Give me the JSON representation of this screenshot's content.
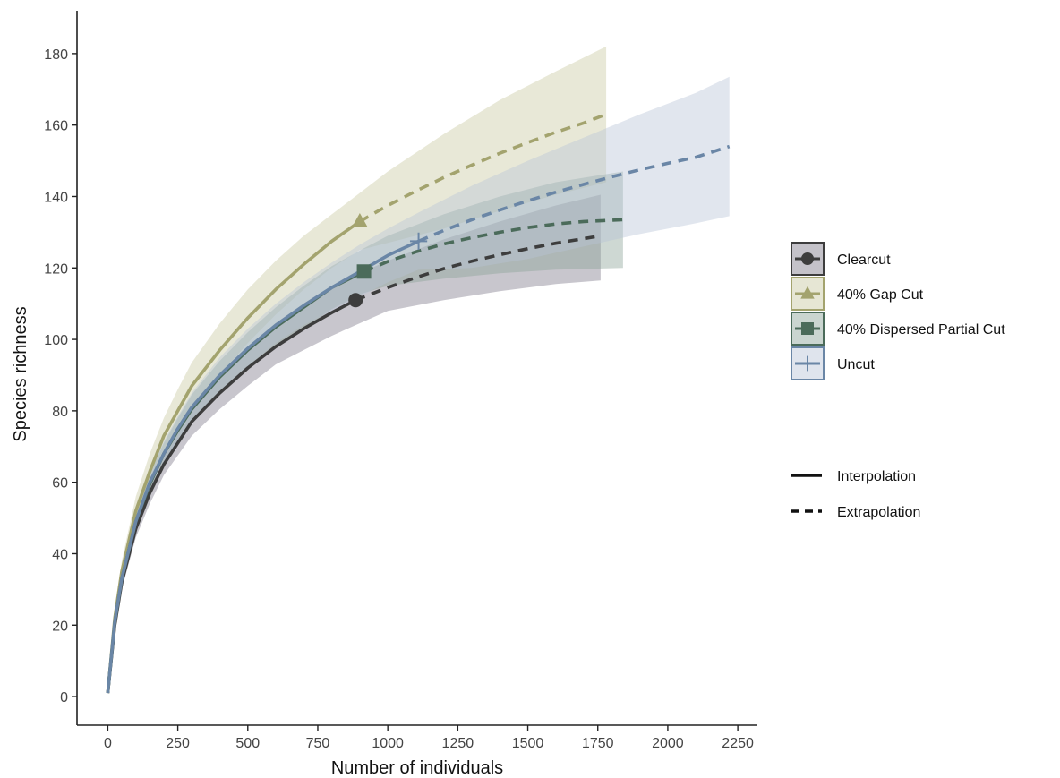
{
  "chart_data": {
    "type": "line",
    "title": "",
    "xlabel": "Number of individuals",
    "ylabel": "Species richness",
    "xlim": [
      -110,
      2320
    ],
    "ylim": [
      -8,
      192
    ],
    "x_ticks": [
      0,
      250,
      500,
      750,
      1000,
      1250,
      1500,
      1750,
      2000,
      2250
    ],
    "x_tick_labels": [
      "0",
      "250",
      "500",
      "750",
      "1000",
      "1250",
      "1500",
      "1750",
      "2000",
      "2250"
    ],
    "y_ticks": [
      0,
      20,
      40,
      60,
      80,
      100,
      120,
      140,
      160,
      180
    ],
    "y_tick_labels": [
      "0",
      "20",
      "40",
      "60",
      "80",
      "100",
      "120",
      "140",
      "160",
      "180"
    ],
    "grid": false,
    "legend_placement": "right",
    "series": [
      {
        "name": "Clearcut",
        "color": "#3d3d3d",
        "fill_color": "#7d7888",
        "marker": "circle",
        "observed": [
          885,
          111
        ],
        "interpolation": [
          [
            0,
            1
          ],
          [
            25,
            20
          ],
          [
            50,
            32
          ],
          [
            100,
            47
          ],
          [
            150,
            57
          ],
          [
            200,
            65
          ],
          [
            250,
            71
          ],
          [
            300,
            77
          ],
          [
            400,
            85
          ],
          [
            500,
            92
          ],
          [
            600,
            98
          ],
          [
            700,
            103
          ],
          [
            800,
            107.5
          ],
          [
            885,
            111
          ]
        ],
        "extrapolation": [
          [
            885,
            111
          ],
          [
            1000,
            114.5
          ],
          [
            1100,
            117.3
          ],
          [
            1200,
            119.8
          ],
          [
            1300,
            121.9
          ],
          [
            1400,
            123.7
          ],
          [
            1500,
            125.4
          ],
          [
            1600,
            126.9
          ],
          [
            1760,
            129
          ]
        ],
        "ci_upper": [
          [
            0,
            1
          ],
          [
            25,
            22
          ],
          [
            50,
            34
          ],
          [
            100,
            50
          ],
          [
            150,
            60
          ],
          [
            200,
            68
          ],
          [
            250,
            75
          ],
          [
            300,
            81
          ],
          [
            400,
            90
          ],
          [
            500,
            97
          ],
          [
            600,
            103
          ],
          [
            700,
            109
          ],
          [
            800,
            114
          ],
          [
            885,
            118
          ],
          [
            1000,
            122
          ],
          [
            1200,
            128
          ],
          [
            1400,
            133
          ],
          [
            1600,
            137.5
          ],
          [
            1760,
            140.5
          ]
        ],
        "ci_lower": [
          [
            1760,
            116.5
          ],
          [
            1600,
            115.5
          ],
          [
            1400,
            113.5
          ],
          [
            1200,
            111
          ],
          [
            1000,
            108
          ],
          [
            885,
            104
          ],
          [
            800,
            101
          ],
          [
            700,
            97
          ],
          [
            600,
            93
          ],
          [
            500,
            87
          ],
          [
            400,
            80.5
          ],
          [
            300,
            73
          ],
          [
            250,
            67.5
          ],
          [
            200,
            62
          ],
          [
            150,
            54
          ],
          [
            100,
            44.5
          ],
          [
            50,
            30
          ],
          [
            25,
            18
          ],
          [
            0,
            1
          ]
        ]
      },
      {
        "name": "40% Gap Cut",
        "color": "#a3a36e",
        "fill_color": "#c7c8a0",
        "marker": "triangle",
        "observed": [
          900,
          133
        ],
        "interpolation": [
          [
            0,
            1
          ],
          [
            25,
            22
          ],
          [
            50,
            35
          ],
          [
            100,
            52
          ],
          [
            150,
            63
          ],
          [
            200,
            73
          ],
          [
            250,
            80
          ],
          [
            300,
            87
          ],
          [
            400,
            97
          ],
          [
            500,
            106
          ],
          [
            600,
            114
          ],
          [
            700,
            121
          ],
          [
            800,
            127.5
          ],
          [
            900,
            133
          ]
        ],
        "extrapolation": [
          [
            900,
            133
          ],
          [
            1000,
            137.5
          ],
          [
            1100,
            141.5
          ],
          [
            1200,
            145.3
          ],
          [
            1300,
            148.8
          ],
          [
            1400,
            152.1
          ],
          [
            1500,
            155.1
          ],
          [
            1600,
            158
          ],
          [
            1700,
            160.6
          ],
          [
            1780,
            163
          ]
        ],
        "ci_upper": [
          [
            0,
            1
          ],
          [
            25,
            24
          ],
          [
            50,
            38
          ],
          [
            100,
            56
          ],
          [
            150,
            68
          ],
          [
            200,
            78
          ],
          [
            250,
            86
          ],
          [
            300,
            93.5
          ],
          [
            400,
            104.5
          ],
          [
            500,
            114
          ],
          [
            600,
            122
          ],
          [
            700,
            129
          ],
          [
            800,
            135
          ],
          [
            900,
            141
          ],
          [
            1000,
            147
          ],
          [
            1200,
            157.5
          ],
          [
            1400,
            167
          ],
          [
            1600,
            175
          ],
          [
            1780,
            182
          ]
        ],
        "ci_lower": [
          [
            1780,
            144
          ],
          [
            1600,
            140.5
          ],
          [
            1400,
            136
          ],
          [
            1200,
            131
          ],
          [
            1000,
            127
          ],
          [
            900,
            125
          ],
          [
            800,
            120
          ],
          [
            700,
            114
          ],
          [
            600,
            107
          ],
          [
            500,
            99
          ],
          [
            400,
            90
          ],
          [
            300,
            81
          ],
          [
            250,
            75
          ],
          [
            200,
            68
          ],
          [
            150,
            59
          ],
          [
            100,
            48
          ],
          [
            50,
            32
          ],
          [
            25,
            20
          ],
          [
            0,
            1
          ]
        ]
      },
      {
        "name": "40% Dispersed Partial Cut",
        "color": "#4b6b5a",
        "fill_color": "#8aa197",
        "marker": "square",
        "observed": [
          915,
          119
        ],
        "interpolation": [
          [
            0,
            1
          ],
          [
            25,
            21
          ],
          [
            50,
            33
          ],
          [
            100,
            49
          ],
          [
            150,
            59.5
          ],
          [
            200,
            68
          ],
          [
            250,
            74.5
          ],
          [
            300,
            80.5
          ],
          [
            400,
            89.5
          ],
          [
            500,
            97
          ],
          [
            600,
            103.5
          ],
          [
            700,
            109
          ],
          [
            800,
            114.5
          ],
          [
            915,
            119
          ]
        ],
        "extrapolation": [
          [
            915,
            119
          ],
          [
            1000,
            121.8
          ],
          [
            1100,
            124.5
          ],
          [
            1200,
            126.7
          ],
          [
            1300,
            128.5
          ],
          [
            1400,
            130
          ],
          [
            1500,
            131.3
          ],
          [
            1600,
            132.3
          ],
          [
            1700,
            133
          ],
          [
            1840,
            133.5
          ]
        ],
        "ci_upper": [
          [
            0,
            1
          ],
          [
            25,
            23
          ],
          [
            50,
            35
          ],
          [
            100,
            52
          ],
          [
            150,
            62.5
          ],
          [
            200,
            71
          ],
          [
            250,
            78
          ],
          [
            300,
            84.5
          ],
          [
            400,
            94
          ],
          [
            500,
            102
          ],
          [
            600,
            109
          ],
          [
            700,
            115
          ],
          [
            800,
            120.5
          ],
          [
            915,
            125.5
          ],
          [
            1000,
            129
          ],
          [
            1200,
            135
          ],
          [
            1400,
            140
          ],
          [
            1600,
            144
          ],
          [
            1840,
            147
          ]
        ],
        "ci_lower": [
          [
            1840,
            120
          ],
          [
            1600,
            119.5
          ],
          [
            1400,
            118.5
          ],
          [
            1200,
            117
          ],
          [
            1000,
            115
          ],
          [
            915,
            113
          ],
          [
            800,
            108.5
          ],
          [
            700,
            103
          ],
          [
            600,
            98
          ],
          [
            500,
            92
          ],
          [
            400,
            85
          ],
          [
            300,
            76.5
          ],
          [
            250,
            71
          ],
          [
            200,
            65
          ],
          [
            150,
            56.5
          ],
          [
            100,
            46
          ],
          [
            50,
            31
          ],
          [
            25,
            19
          ],
          [
            0,
            1
          ]
        ]
      },
      {
        "name": "Uncut",
        "color": "#6a86a6",
        "fill_color": "#b7c3d6",
        "marker": "cross",
        "observed": [
          1110,
          127.5
        ],
        "interpolation": [
          [
            0,
            1
          ],
          [
            25,
            21
          ],
          [
            50,
            33
          ],
          [
            100,
            49
          ],
          [
            150,
            60
          ],
          [
            200,
            68
          ],
          [
            250,
            75
          ],
          [
            300,
            81
          ],
          [
            400,
            90
          ],
          [
            500,
            97.5
          ],
          [
            600,
            104
          ],
          [
            700,
            109.5
          ],
          [
            800,
            114.5
          ],
          [
            900,
            119
          ],
          [
            1000,
            123.5
          ],
          [
            1110,
            127.5
          ]
        ],
        "extrapolation": [
          [
            1110,
            127.5
          ],
          [
            1200,
            130.5
          ],
          [
            1300,
            133.5
          ],
          [
            1400,
            136.2
          ],
          [
            1500,
            138.8
          ],
          [
            1600,
            141.2
          ],
          [
            1700,
            143.4
          ],
          [
            1800,
            145.5
          ],
          [
            1900,
            147.5
          ],
          [
            2000,
            149.3
          ],
          [
            2100,
            151
          ],
          [
            2220,
            154
          ]
        ],
        "ci_upper": [
          [
            0,
            1
          ],
          [
            25,
            23
          ],
          [
            50,
            35
          ],
          [
            100,
            52
          ],
          [
            150,
            63
          ],
          [
            200,
            71.5
          ],
          [
            250,
            78.5
          ],
          [
            300,
            85
          ],
          [
            400,
            95
          ],
          [
            500,
            103
          ],
          [
            600,
            110
          ],
          [
            700,
            116
          ],
          [
            800,
            121.5
          ],
          [
            900,
            126.5
          ],
          [
            1000,
            131
          ],
          [
            1110,
            135.5
          ],
          [
            1300,
            143
          ],
          [
            1500,
            150
          ],
          [
            1700,
            156.5
          ],
          [
            1900,
            163
          ],
          [
            2100,
            169
          ],
          [
            2220,
            173.5
          ]
        ],
        "ci_lower": [
          [
            2220,
            134.5
          ],
          [
            2100,
            132.5
          ],
          [
            1900,
            129.5
          ],
          [
            1700,
            126
          ],
          [
            1500,
            122.5
          ],
          [
            1300,
            120
          ],
          [
            1110,
            119.5
          ],
          [
            1000,
            116
          ],
          [
            900,
            112
          ],
          [
            800,
            108
          ],
          [
            700,
            104
          ],
          [
            600,
            99
          ],
          [
            500,
            92.5
          ],
          [
            400,
            85.5
          ],
          [
            300,
            77
          ],
          [
            250,
            71.5
          ],
          [
            200,
            65
          ],
          [
            150,
            57
          ],
          [
            100,
            46.5
          ],
          [
            50,
            31
          ],
          [
            25,
            19
          ],
          [
            0,
            1
          ]
        ]
      }
    ],
    "line_type_legend": [
      {
        "label": "Interpolation",
        "style": "solid"
      },
      {
        "label": "Extrapolation",
        "style": "dashed"
      }
    ]
  }
}
